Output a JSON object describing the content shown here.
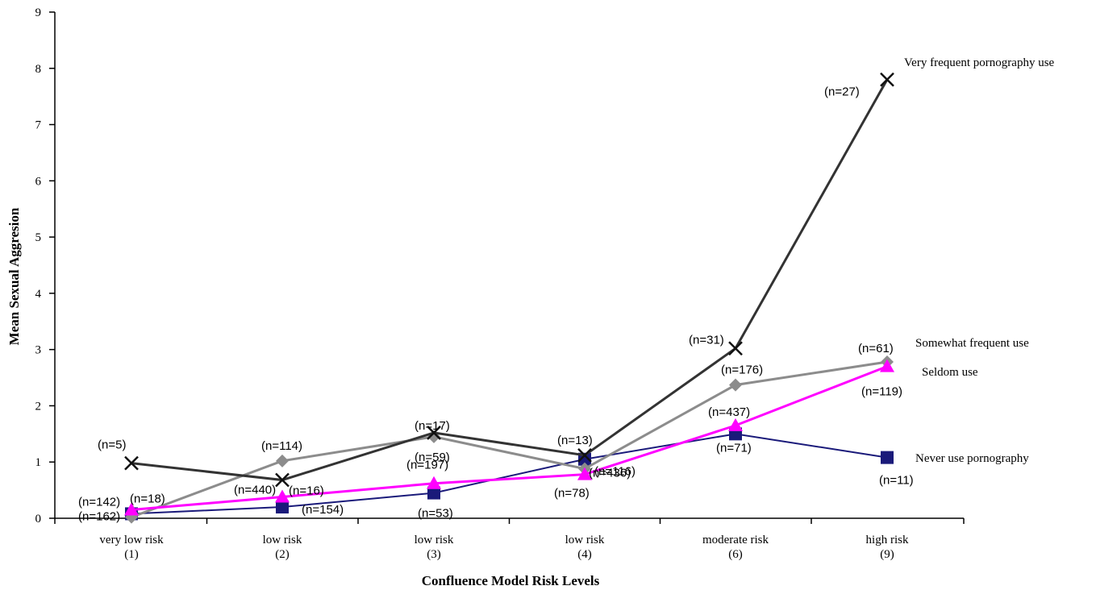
{
  "chart_data": {
    "type": "line",
    "title": "",
    "xlabel": "Confluence Model Risk Levels",
    "ylabel": "Mean Sexual Aggresion",
    "ylim": [
      0,
      9
    ],
    "yticks": [
      "0",
      "1",
      "2",
      "3",
      "4",
      "5",
      "6",
      "7",
      "8",
      "9"
    ],
    "categories": [
      {
        "line1": "very low risk",
        "line2": "(1)"
      },
      {
        "line1": "low risk",
        "line2": "(2)"
      },
      {
        "line1": "low risk",
        "line2": "(3)"
      },
      {
        "line1": "low risk",
        "line2": "(4)"
      },
      {
        "line1": "moderate risk",
        "line2": "(6)"
      },
      {
        "line1": "high risk",
        "line2": "(9)"
      }
    ],
    "grid": false,
    "series": [
      {
        "name": "Never use pornography",
        "color": "#1a1a7a",
        "marker": "square",
        "values": [
          0.08,
          0.2,
          0.45,
          1.05,
          1.5,
          1.08
        ],
        "n_labels": [
          "(n=162)",
          "(n=154)",
          "(n=53)",
          "(n=436)",
          "(n=71)",
          "(n=11)"
        ]
      },
      {
        "name": "Seldom use",
        "color": "#ff00ff",
        "marker": "triangle",
        "values": [
          0.15,
          0.38,
          0.62,
          0.78,
          1.65,
          2.7
        ],
        "n_labels": [
          "(n=142)",
          "(n=440)",
          "(n=197)",
          "(n=78)",
          "(n=437)",
          "(n=119)"
        ]
      },
      {
        "name": "Somewhat frequent use",
        "color": "#8c8c8c",
        "marker": "diamond",
        "values": [
          0.02,
          1.02,
          1.45,
          0.88,
          2.37,
          2.78
        ],
        "n_labels": [
          "(n=18)",
          "(n=114)",
          "(n=59)",
          "(n=116)",
          "(n=176)",
          "(n=61)"
        ]
      },
      {
        "name": "Very frequent pornography use",
        "color": "#333333",
        "marker": "x",
        "values": [
          0.98,
          0.68,
          1.52,
          1.12,
          3.02,
          7.8
        ],
        "n_labels": [
          "(n=5)",
          "(n=16)",
          "(n=17)",
          "(n=13)",
          "(n=31)",
          "(n=27)"
        ]
      }
    ]
  }
}
